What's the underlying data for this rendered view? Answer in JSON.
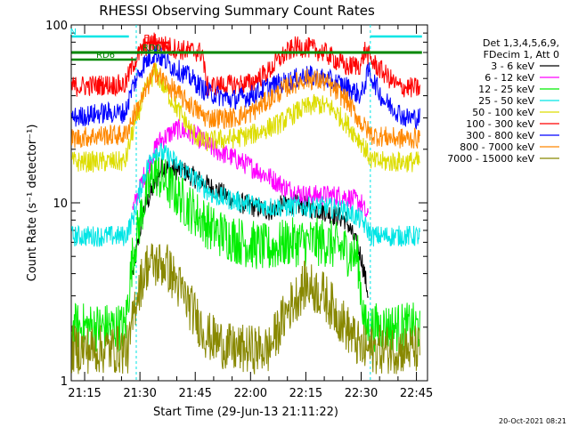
{
  "chart_data": {
    "type": "line",
    "title": "RHESSI Observing Summary Count Rates",
    "xlabel": "Start Time (29-Jun-13 21:11:22)",
    "ylabel": "Count Rate (s⁻¹ detector⁻¹)",
    "y_scale": "log",
    "ylim": [
      1,
      100
    ],
    "y_ticks": [
      "1",
      "10",
      "100"
    ],
    "xlim": [
      "21:11:22",
      "22:48:00"
    ],
    "x_ticks": [
      "21:15",
      "21:30",
      "21:45",
      "22:00",
      "22:15",
      "22:30",
      "22:45"
    ],
    "legend_header": [
      "Det 1,3,4,5,6,9,",
      "FDecim 1, Att 0"
    ],
    "legend_placement": "right",
    "footer_date": "20-Oct-2021 08:21",
    "flags": [
      {
        "label": "N",
        "color": "#00e5e5",
        "start": "21:11:30",
        "end": "21:27:00"
      },
      {
        "label": "",
        "color": "#00e5e5",
        "start": "22:32:30",
        "end": "22:46:30"
      },
      {
        "label": "RD0",
        "color": "#008800",
        "start": "21:11:30",
        "end": "22:46:30"
      },
      {
        "label": "RD6",
        "color": "#008800",
        "start": "21:11:30",
        "end": "21:29:00"
      },
      {
        "label": "F",
        "color": "#ff0000",
        "start": "21:31:30",
        "end": "21:38:00"
      }
    ],
    "series": [
      {
        "name": "3 - 6 keV",
        "color": "#000000",
        "points": [
          [
            "21:28",
            4
          ],
          [
            "21:31",
            9
          ],
          [
            "21:36",
            16
          ],
          [
            "21:42",
            15
          ],
          [
            "21:50",
            12
          ],
          [
            "21:57",
            10
          ],
          [
            "22:05",
            9
          ],
          [
            "22:10",
            10
          ],
          [
            "22:15",
            9.5
          ],
          [
            "22:20",
            9
          ],
          [
            "22:26",
            8
          ],
          [
            "22:30",
            5
          ],
          [
            "22:32",
            3
          ]
        ]
      },
      {
        "name": "6 - 12 keV",
        "color": "#ff00ff",
        "points": [
          [
            "21:28",
            9
          ],
          [
            "21:31",
            14
          ],
          [
            "21:35",
            22
          ],
          [
            "21:40",
            26
          ],
          [
            "21:45",
            24
          ],
          [
            "21:50",
            20
          ],
          [
            "21:55",
            18
          ],
          [
            "22:00",
            16
          ],
          [
            "22:05",
            14
          ],
          [
            "22:10",
            12
          ],
          [
            "22:15",
            11
          ],
          [
            "22:20",
            11
          ],
          [
            "22:25",
            11
          ],
          [
            "22:30",
            10
          ],
          [
            "22:32",
            8
          ]
        ]
      },
      {
        "name": "12 - 25 keV",
        "color": "#00ee00",
        "points": [
          [
            "21:11:30",
            2
          ],
          [
            "21:15",
            2
          ],
          [
            "21:20",
            2
          ],
          [
            "21:26",
            2
          ],
          [
            "21:28",
            5
          ],
          [
            "21:31",
            10
          ],
          [
            "21:34",
            15
          ],
          [
            "21:37",
            13
          ],
          [
            "21:42",
            10
          ],
          [
            "21:50",
            7
          ],
          [
            "21:58",
            6
          ],
          [
            "22:05",
            5.5
          ],
          [
            "22:10",
            6
          ],
          [
            "22:15",
            6
          ],
          [
            "22:20",
            6
          ],
          [
            "22:25",
            5.5
          ],
          [
            "22:29",
            5
          ],
          [
            "22:31",
            2
          ],
          [
            "22:35",
            2
          ],
          [
            "22:40",
            2
          ],
          [
            "22:46",
            2
          ]
        ]
      },
      {
        "name": "25 - 50 keV",
        "color": "#00e5e5",
        "points": [
          [
            "21:11:30",
            6.5
          ],
          [
            "21:20",
            6.5
          ],
          [
            "21:26",
            6.5
          ],
          [
            "21:28",
            8
          ],
          [
            "21:31",
            14
          ],
          [
            "21:34",
            20
          ],
          [
            "21:38",
            18
          ],
          [
            "21:44",
            14
          ],
          [
            "21:50",
            11
          ],
          [
            "21:58",
            10
          ],
          [
            "22:05",
            9.5
          ],
          [
            "22:10",
            9.5
          ],
          [
            "22:15",
            9.5
          ],
          [
            "22:20",
            9.5
          ],
          [
            "22:26",
            9
          ],
          [
            "22:30",
            8
          ],
          [
            "22:33",
            6.5
          ],
          [
            "22:40",
            6.5
          ],
          [
            "22:46",
            6.5
          ]
        ]
      },
      {
        "name": "50 - 100 keV",
        "color": "#dddd00",
        "points": [
          [
            "21:11:30",
            17
          ],
          [
            "21:20",
            17
          ],
          [
            "21:26",
            17
          ],
          [
            "21:28",
            25
          ],
          [
            "21:31",
            40
          ],
          [
            "21:34",
            55
          ],
          [
            "21:38",
            40
          ],
          [
            "21:44",
            25
          ],
          [
            "21:47",
            22
          ],
          [
            "21:55",
            23
          ],
          [
            "22:00",
            24
          ],
          [
            "22:08",
            28
          ],
          [
            "22:13",
            33
          ],
          [
            "22:18",
            36
          ],
          [
            "22:22",
            34
          ],
          [
            "22:26",
            28
          ],
          [
            "22:30",
            22
          ],
          [
            "22:33",
            17
          ],
          [
            "22:40",
            17
          ],
          [
            "22:46",
            17
          ]
        ]
      },
      {
        "name": "100 - 300 keV",
        "color": "#ff0000",
        "points": [
          [
            "21:11:30",
            45
          ],
          [
            "21:20",
            46
          ],
          [
            "21:26",
            46
          ],
          [
            "21:28",
            60
          ],
          [
            "21:31",
            75
          ],
          [
            "21:34",
            80
          ],
          [
            "21:38",
            75
          ],
          [
            "21:42",
            72
          ],
          [
            "21:47",
            70
          ],
          [
            "21:48",
            45
          ],
          [
            "21:55",
            46
          ],
          [
            "22:00",
            47
          ],
          [
            "22:05",
            55
          ],
          [
            "22:08",
            65
          ],
          [
            "22:12",
            75
          ],
          [
            "22:15",
            75
          ],
          [
            "22:20",
            70
          ],
          [
            "22:26",
            58
          ],
          [
            "22:30",
            60
          ],
          [
            "22:31",
            72
          ],
          [
            "22:33",
            62
          ],
          [
            "22:40",
            45
          ],
          [
            "22:46",
            44
          ]
        ]
      },
      {
        "name": "300 - 800 keV",
        "color": "#0000ff",
        "points": [
          [
            "21:11:30",
            30
          ],
          [
            "21:20",
            32
          ],
          [
            "21:26",
            32
          ],
          [
            "21:28",
            45
          ],
          [
            "21:31",
            60
          ],
          [
            "21:34",
            70
          ],
          [
            "21:38",
            60
          ],
          [
            "21:44",
            50
          ],
          [
            "21:48",
            42
          ],
          [
            "21:55",
            38
          ],
          [
            "22:00",
            40
          ],
          [
            "22:05",
            45
          ],
          [
            "22:10",
            48
          ],
          [
            "22:15",
            52
          ],
          [
            "22:20",
            50
          ],
          [
            "22:26",
            45
          ],
          [
            "22:30",
            40
          ],
          [
            "22:32",
            55
          ],
          [
            "22:36",
            38
          ],
          [
            "22:42",
            30
          ],
          [
            "22:46",
            30
          ]
        ]
      },
      {
        "name": "800 - 7000 keV",
        "color": "#ff8800",
        "points": [
          [
            "21:11:30",
            23
          ],
          [
            "21:20",
            24
          ],
          [
            "21:26",
            24
          ],
          [
            "21:28",
            30
          ],
          [
            "21:31",
            40
          ],
          [
            "21:34",
            55
          ],
          [
            "21:38",
            45
          ],
          [
            "21:44",
            35
          ],
          [
            "21:48",
            30
          ],
          [
            "21:55",
            30
          ],
          [
            "22:00",
            32
          ],
          [
            "22:05",
            38
          ],
          [
            "22:10",
            45
          ],
          [
            "22:15",
            50
          ],
          [
            "22:20",
            48
          ],
          [
            "22:26",
            38
          ],
          [
            "22:30",
            28
          ],
          [
            "22:33",
            24
          ],
          [
            "22:40",
            23
          ],
          [
            "22:46",
            23
          ]
        ]
      },
      {
        "name": "7000 - 15000 keV",
        "color": "#888800",
        "points": [
          [
            "21:11:30",
            1.5
          ],
          [
            "21:20",
            1.5
          ],
          [
            "21:27",
            1.5
          ],
          [
            "21:29",
            3
          ],
          [
            "21:32",
            4.5
          ],
          [
            "21:37",
            4.5
          ],
          [
            "21:42",
            3
          ],
          [
            "21:48",
            1.8
          ],
          [
            "21:55",
            1.5
          ],
          [
            "22:05",
            1.5
          ],
          [
            "22:10",
            2.5
          ],
          [
            "22:15",
            3.5
          ],
          [
            "22:20",
            3
          ],
          [
            "22:26",
            2
          ],
          [
            "22:30",
            1.5
          ],
          [
            "22:40",
            1.5
          ],
          [
            "22:46",
            1.5
          ]
        ]
      }
    ]
  }
}
